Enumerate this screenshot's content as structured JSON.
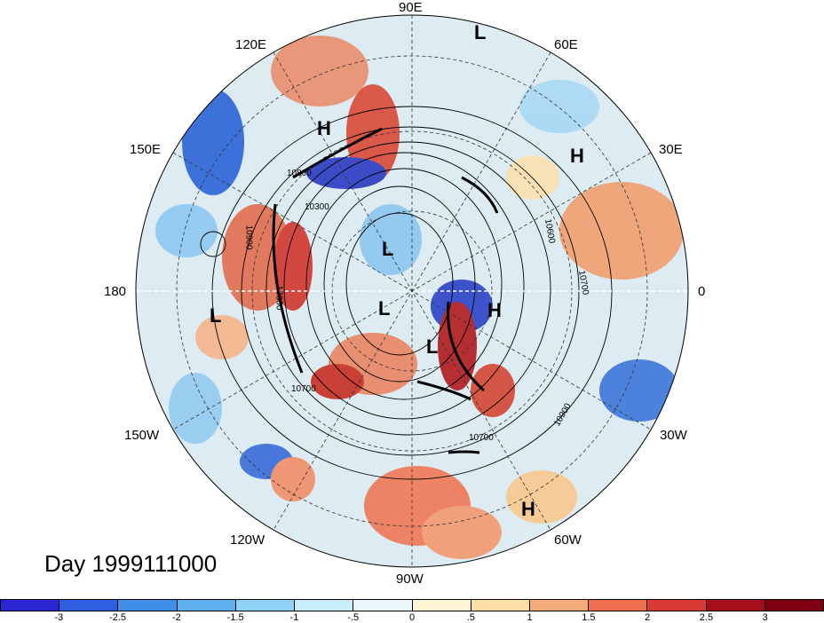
{
  "title": "Day 1999111000",
  "longitude_labels": {
    "lon_90E": "90E",
    "lon_120E": "120E",
    "lon_60E": "60E",
    "lon_150E": "150E",
    "lon_30E": "30E",
    "lon_180": "180",
    "lon_0": "0",
    "lon_150W": "150W",
    "lon_30W": "30W",
    "lon_120W": "120W",
    "lon_60W": "60W",
    "lon_90W": "90W"
  },
  "pressure_centers": [
    {
      "label": "L"
    },
    {
      "label": "H"
    },
    {
      "label": "H"
    },
    {
      "label": "L"
    },
    {
      "label": "L"
    },
    {
      "label": "H"
    },
    {
      "label": "L"
    },
    {
      "label": "L"
    },
    {
      "label": "H"
    }
  ],
  "contour_labels": [
    "10800",
    "10300",
    "10900",
    "10800",
    "10700",
    "10600",
    "10700",
    "10700",
    "10900"
  ],
  "colorbar": {
    "ticks": [
      "-3",
      "-2.5",
      "-2",
      "-1.5",
      "-1",
      "-.5",
      "0",
      ".5",
      "1",
      "1.5",
      "2",
      "2.5",
      "3"
    ],
    "colors": [
      "#2a26d0",
      "#2f5fe0",
      "#3f8fe8",
      "#5fb0f0",
      "#8fd4f8",
      "#c8eefc",
      "#eaf8fe",
      "#fff6d6",
      "#fde0a8",
      "#f6ab7a",
      "#ee6e4e",
      "#d93a32",
      "#a50f1c",
      "#7f0010"
    ]
  }
}
